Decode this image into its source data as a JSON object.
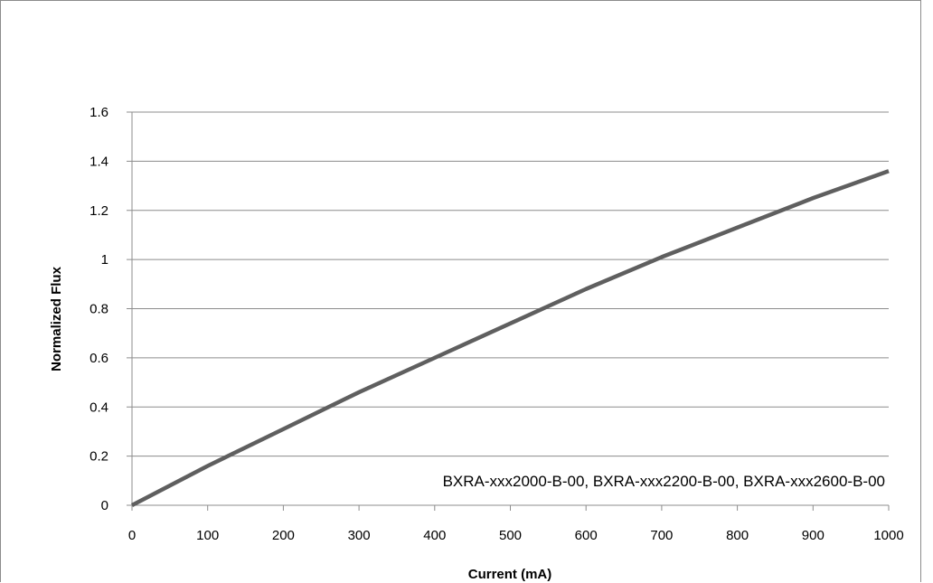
{
  "chart_data": {
    "type": "line",
    "xlabel": "Current (mA)",
    "ylabel": "Normalized Flux",
    "xlim": [
      0,
      1000
    ],
    "ylim": [
      0,
      1.6
    ],
    "x_ticks": [
      "0",
      "100",
      "200",
      "300",
      "400",
      "500",
      "600",
      "700",
      "800",
      "900",
      "1000"
    ],
    "y_ticks": [
      "0",
      "0.2",
      "0.4",
      "0.6",
      "0.8",
      "1",
      "1.2",
      "1.4",
      "1.6"
    ],
    "grid": "horizontal",
    "annotation": "BXRA-xxx2000-B-00, BXRA-xxx2200-B-00, BXRA-xxx2600-B-00",
    "series": [
      {
        "color": "#5f5f5f",
        "x": [
          0,
          100,
          200,
          300,
          400,
          500,
          600,
          700,
          800,
          900,
          1000
        ],
        "y": [
          0,
          0.16,
          0.31,
          0.46,
          0.6,
          0.74,
          0.88,
          1.01,
          1.13,
          1.25,
          1.36
        ]
      }
    ]
  }
}
